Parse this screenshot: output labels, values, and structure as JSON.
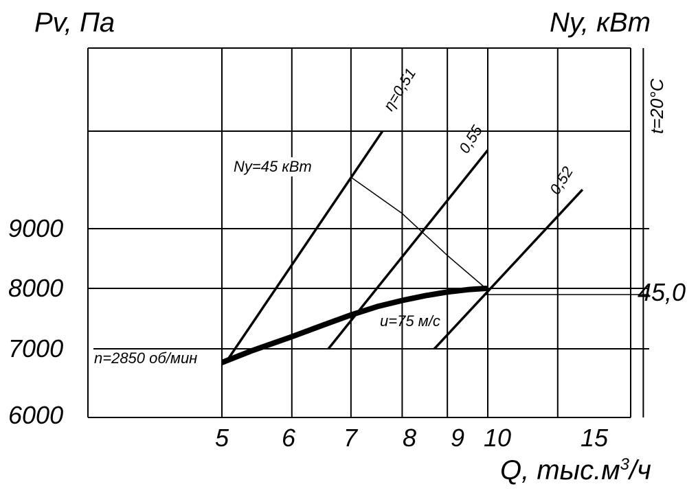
{
  "chart_data": {
    "type": "line",
    "title": "",
    "ylabel_left": "Pv, Па",
    "ylabel_right": "Ny, кВт",
    "xlabel": "Q, тыс.м",
    "xlabel_sup": "3",
    "xlabel_tail": "/ч",
    "temperature_label": "t=20°C",
    "x_scale": "log",
    "xlim": [
      2.5,
      20
    ],
    "y_ticks": [
      "6000",
      "7000",
      "8000",
      "9000"
    ],
    "x_ticks": [
      "5",
      "6",
      "7",
      "8",
      "9",
      "10",
      "15"
    ],
    "grid_x": [
      5,
      6,
      7,
      8,
      9,
      10,
      12,
      15
    ],
    "grid_y": [
      6000,
      7000,
      8000,
      9000,
      10800
    ],
    "series": [
      {
        "name": "",
        "label": "n=2850 об/мин",
        "x": [
          5.0,
          5.4,
          6.0,
          6.5,
          7.0,
          7.5,
          8.0,
          8.5,
          9.0,
          9.5,
          9.95
        ],
        "y": [
          6800,
          6970,
          7200,
          7390,
          7560,
          7700,
          7800,
          7880,
          7940,
          7980,
          8000
        ]
      }
    ],
    "efficiency_lines": [
      {
        "label": "η=0,51",
        "x": [
          5.05,
          7.6
        ],
        "y": [
          6800,
          10800
        ]
      },
      {
        "label": "0,55",
        "x": [
          6.6,
          10.0
        ],
        "y": [
          7000,
          10450
        ]
      },
      {
        "label": "0,52",
        "x": [
          8.7,
          12.8
        ],
        "y": [
          7000,
          9720
        ]
      }
    ],
    "power_curve": {
      "label": "Ny=45 кВт",
      "x": [
        7.0,
        8.0,
        9.0,
        9.95
      ],
      "y": [
        9950,
        9280,
        8550,
        8000
      ]
    },
    "velocity_label": "u=75 м/с",
    "right_value_label": "45,0"
  }
}
